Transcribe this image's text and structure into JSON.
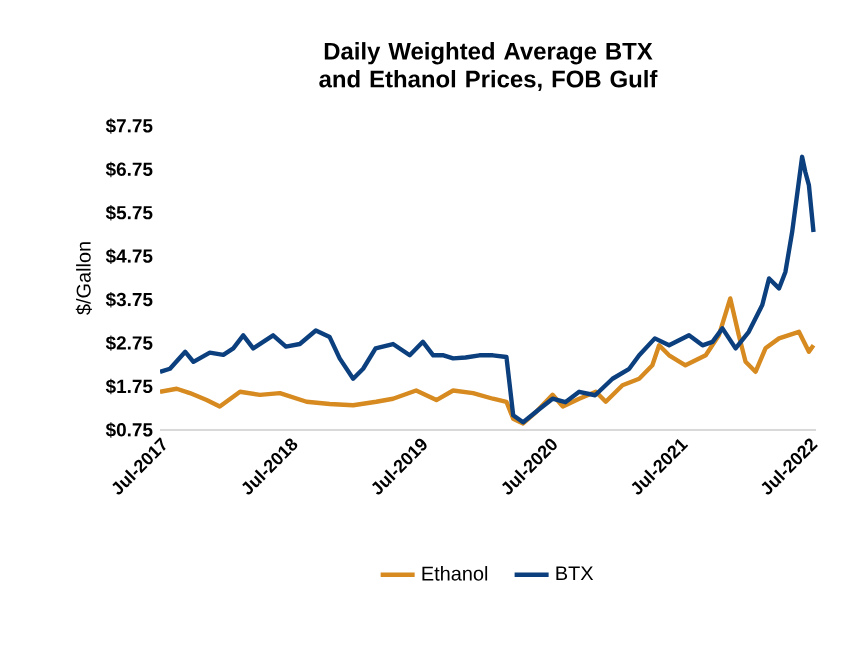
{
  "chart_data": {
    "type": "line",
    "title": "Daily Weighted Average BTX and Ethanol Prices, FOB Gulf",
    "ylabel": "$/Gallon",
    "xlim": [
      "2017-07-01",
      "2022-07-20"
    ],
    "xticks": [
      {
        "value": "2017-07-01",
        "label": "Jul-2017"
      },
      {
        "value": "2018-07-01",
        "label": "Jul-2018"
      },
      {
        "value": "2019-07-01",
        "label": "Jul-2019"
      },
      {
        "value": "2020-07-01",
        "label": "Jul-2020"
      },
      {
        "value": "2021-07-01",
        "label": "Jul-2021"
      },
      {
        "value": "2022-07-01",
        "label": "Jul-2022"
      }
    ],
    "ylim": [
      0.75,
      7.75
    ],
    "yticks": [
      {
        "value": 0.75,
        "label": "$0.75"
      },
      {
        "value": 1.75,
        "label": "$1.75"
      },
      {
        "value": 2.75,
        "label": "$2.75"
      },
      {
        "value": 3.75,
        "label": "$3.75"
      },
      {
        "value": 4.75,
        "label": "$4.75"
      },
      {
        "value": 5.75,
        "label": "$5.75"
      },
      {
        "value": 6.75,
        "label": "$6.75"
      },
      {
        "value": 7.75,
        "label": "$7.75"
      }
    ],
    "legend": "bottom",
    "grid": false,
    "marker": "none",
    "line_style": "solid",
    "series": [
      {
        "name": "Ethanol",
        "color": "#d68a1f",
        "x": [
          "2017-07-01",
          "2017-08-17",
          "2017-09-23",
          "2017-11-09",
          "2017-12-16",
          "2018-02-11",
          "2018-04-08",
          "2018-06-03",
          "2018-08-17",
          "2018-10-21",
          "2018-12-26",
          "2019-03-01",
          "2019-04-17",
          "2019-06-21",
          "2019-08-17",
          "2019-10-03",
          "2019-11-28",
          "2020-01-23",
          "2020-03-01",
          "2020-03-20",
          "2020-04-17",
          "2020-05-24",
          "2020-07-09",
          "2020-08-07",
          "2020-09-22",
          "2020-11-08",
          "2020-12-06",
          "2021-01-22",
          "2021-03-10",
          "2021-04-16",
          "2021-05-05",
          "2021-06-02",
          "2021-07-18",
          "2021-09-13",
          "2021-10-20",
          "2021-11-21",
          "2021-12-15",
          "2022-01-03",
          "2022-01-31",
          "2022-02-28",
          "2022-04-07",
          "2022-06-02",
          "2022-06-30",
          "2022-07-13"
        ],
        "values": [
          1.63,
          1.7,
          1.6,
          1.44,
          1.29,
          1.63,
          1.56,
          1.6,
          1.4,
          1.35,
          1.32,
          1.4,
          1.47,
          1.66,
          1.44,
          1.66,
          1.6,
          1.47,
          1.4,
          1.01,
          0.9,
          1.17,
          1.56,
          1.29,
          1.47,
          1.63,
          1.4,
          1.78,
          1.93,
          2.24,
          2.7,
          2.47,
          2.24,
          2.47,
          2.93,
          3.78,
          2.93,
          2.32,
          2.09,
          2.63,
          2.86,
          3.01,
          2.55,
          2.7
        ]
      },
      {
        "name": "BTX",
        "color": "#0b3f7e",
        "x": [
          "2017-07-01",
          "2017-07-29",
          "2017-09-10",
          "2017-10-03",
          "2017-11-18",
          "2017-12-26",
          "2018-01-23",
          "2018-02-20",
          "2018-03-20",
          "2018-05-15",
          "2018-06-20",
          "2018-07-29",
          "2018-09-12",
          "2018-10-21",
          "2018-11-18",
          "2018-12-26",
          "2019-01-23",
          "2019-02-27",
          "2019-04-17",
          "2019-06-03",
          "2019-07-10",
          "2019-08-08",
          "2019-09-06",
          "2019-10-03",
          "2019-11-07",
          "2019-12-16",
          "2020-01-23",
          "2020-03-01",
          "2020-03-20",
          "2020-04-17",
          "2020-06-03",
          "2020-07-09",
          "2020-08-14",
          "2020-09-22",
          "2020-11-06",
          "2020-12-25",
          "2021-02-10",
          "2021-03-10",
          "2021-04-23",
          "2021-06-02",
          "2021-07-28",
          "2021-09-04",
          "2021-10-02",
          "2021-10-30",
          "2021-12-06",
          "2022-01-12",
          "2022-02-19",
          "2022-03-10",
          "2022-04-07",
          "2022-04-25",
          "2022-05-14",
          "2022-06-11",
          "2022-06-20",
          "2022-06-30",
          "2022-07-13"
        ],
        "values": [
          2.09,
          2.16,
          2.55,
          2.32,
          2.53,
          2.48,
          2.63,
          2.93,
          2.63,
          2.93,
          2.67,
          2.73,
          3.04,
          2.89,
          2.4,
          1.93,
          2.16,
          2.63,
          2.73,
          2.47,
          2.78,
          2.47,
          2.47,
          2.4,
          2.42,
          2.47,
          2.47,
          2.43,
          1.09,
          0.93,
          1.24,
          1.47,
          1.39,
          1.63,
          1.55,
          1.93,
          2.16,
          2.47,
          2.86,
          2.7,
          2.93,
          2.7,
          2.78,
          3.09,
          2.63,
          3.01,
          3.63,
          4.24,
          4.01,
          4.39,
          5.31,
          7.04,
          6.69,
          6.39,
          5.31
        ]
      }
    ]
  }
}
